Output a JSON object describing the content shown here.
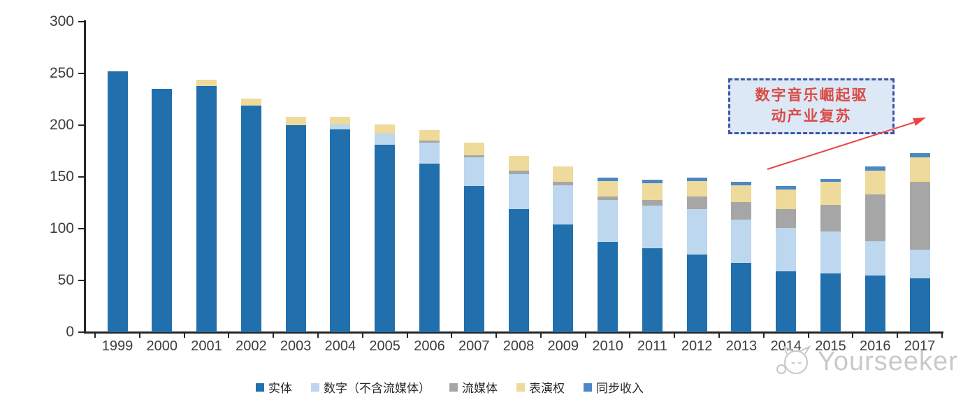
{
  "chart_data": {
    "type": "bar",
    "subtype": "stacked",
    "title": "",
    "xlabel": "",
    "ylabel": "",
    "ylim": [
      0,
      300
    ],
    "yticks": [
      0,
      50,
      100,
      150,
      200,
      250,
      300
    ],
    "grid": false,
    "legend_position": "bottom",
    "categories": [
      "1999",
      "2000",
      "2001",
      "2002",
      "2003",
      "2004",
      "2005",
      "2006",
      "2007",
      "2008",
      "2009",
      "2010",
      "2011",
      "2012",
      "2013",
      "2014",
      "2015",
      "2016",
      "2017"
    ],
    "series": [
      {
        "name": "实体",
        "color": "#2170ad",
        "values": [
          252,
          235,
          238,
          219,
          200,
          196,
          181,
          163,
          141,
          119,
          104,
          87,
          81,
          75,
          67,
          59,
          57,
          55,
          52
        ]
      },
      {
        "name": "数字（不含流媒体）",
        "color": "#bdd7ee",
        "values": [
          0,
          0,
          0,
          0,
          0,
          5,
          11,
          20,
          28,
          34,
          38,
          41,
          41,
          44,
          42,
          42,
          40,
          33,
          28
        ]
      },
      {
        "name": "流媒体",
        "color": "#a6a6a6",
        "values": [
          0,
          0,
          0,
          0,
          0,
          0,
          0,
          2,
          2,
          3,
          3,
          3,
          6,
          12,
          17,
          18,
          26,
          45,
          65
        ]
      },
      {
        "name": "表演权",
        "color": "#eeda9a",
        "values": [
          0,
          0,
          6,
          7,
          8,
          7,
          9,
          10,
          12,
          14,
          15,
          15,
          16,
          15,
          16,
          19,
          22,
          23,
          24
        ]
      },
      {
        "name": "同步收入",
        "color": "#4c87c6",
        "values": [
          0,
          0,
          0,
          0,
          0,
          0,
          0,
          0,
          0,
          0,
          0,
          3,
          3,
          3,
          3,
          3,
          3,
          4,
          4
        ]
      }
    ]
  },
  "annotation": {
    "line1": "数字音乐崛起驱",
    "line2": "动产业复苏",
    "text_color": "#d94b45",
    "box_fill": "#dce8f6",
    "box_border": "#3c55a4",
    "arrow_color": "#e84545"
  },
  "watermark": {
    "text": "Yourseeker",
    "logo": "cat-logo-icon",
    "color": "#c9c9c9"
  },
  "axis_color": "#262626",
  "label_color": "#3d3d3d"
}
